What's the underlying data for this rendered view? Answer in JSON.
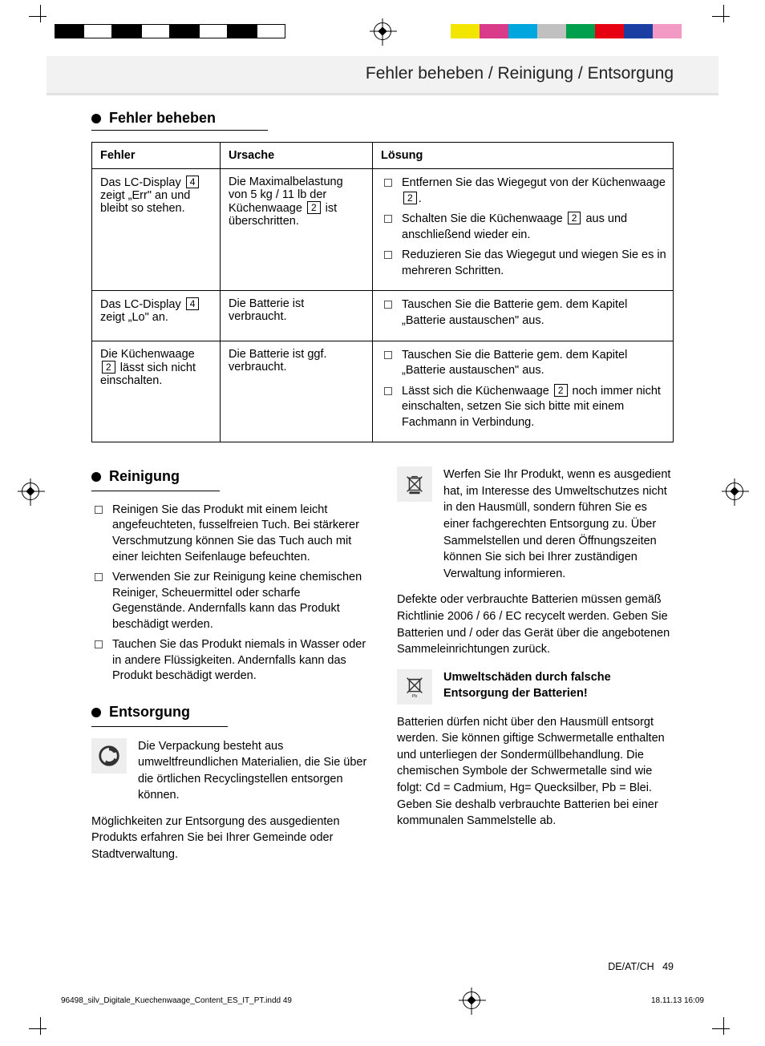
{
  "colorbars": {
    "left": [
      "#000000",
      "#ffffff",
      "#000000",
      "#ffffff",
      "#000000",
      "#ffffff",
      "#000000",
      "#ffffff"
    ],
    "right": [
      "#f2e600",
      "#d93b8a",
      "#00a6dd",
      "#c0c0c0",
      "#009f4d",
      "#e60012",
      "#1a3ea1",
      "#f29ac4"
    ]
  },
  "running_head": "Fehler beheben / Reinigung / Entsorgung",
  "sections": {
    "trouble": "Fehler beheben",
    "clean": "Reinigung",
    "dispose": "Entsorgung"
  },
  "table": {
    "headers": {
      "c1": "Fehler",
      "c2": "Ursache",
      "c3": "Lösung"
    },
    "rows": [
      {
        "fault_pre": "Das LC-Display ",
        "fault_ref": "4",
        "fault_post": " zeigt „Err\" an und bleibt so stehen.",
        "cause_pre": "Die Maximalbelastung von 5 kg / 11 lb der Küchenwaage ",
        "cause_ref": "2",
        "cause_post": " ist überschritten.",
        "sol": [
          {
            "pre": "Entfernen Sie das Wiegegut von der Küchenwaage ",
            "ref": "2",
            "post": "."
          },
          {
            "pre": "Schalten Sie die Küchenwaage ",
            "ref": "2",
            "post": " aus und anschließend wieder ein."
          },
          {
            "pre": "Reduzieren Sie das Wiegegut und wiegen Sie es in mehreren Schritten.",
            "ref": "",
            "post": ""
          }
        ]
      },
      {
        "fault_pre": "Das LC-Display ",
        "fault_ref": "4",
        "fault_post": " zeigt „Lo\" an.",
        "cause_pre": "Die Batterie ist verbraucht.",
        "cause_ref": "",
        "cause_post": "",
        "sol": [
          {
            "pre": "Tauschen Sie die Batterie gem. dem Kapitel „Batterie austauschen\" aus.",
            "ref": "",
            "post": ""
          }
        ]
      },
      {
        "fault_pre": "Die Küchenwaage ",
        "fault_ref": "2",
        "fault_post": " lässt sich nicht einschalten.",
        "cause_pre": "Die Batterie ist ggf. verbraucht.",
        "cause_ref": "",
        "cause_post": "",
        "sol": [
          {
            "pre": "Tauschen Sie die Batterie gem. dem Kapitel „Batterie austauschen\" aus.",
            "ref": "",
            "post": ""
          },
          {
            "pre": "Lässt sich die Küchenwaage ",
            "ref": "2",
            "post": " noch immer nicht einschalten, setzen Sie sich bitte mit einem Fachmann in Verbindung."
          }
        ]
      }
    ]
  },
  "cleaning": [
    "Reinigen Sie das Produkt mit einem leicht angefeuchteten, fusselfreien Tuch. Bei stärkerer Verschmutzung können Sie das Tuch auch mit einer leichten Seifenlauge befeuchten.",
    "Verwenden Sie zur Reinigung keine chemischen Reiniger, Scheuermittel oder scharfe Gegenstände. Andernfalls kann das Produkt beschädigt werden.",
    "Tauchen Sie das Produkt niemals in Wasser oder in andere Flüssigkeiten. Andernfalls kann das Produkt beschädigt werden."
  ],
  "disposal": {
    "p1": "Die Verpackung besteht aus umweltfreundlichen Materialien, die Sie über die örtlichen Recyclingstellen entsorgen können.",
    "p2": "Möglichkeiten zur Entsorgung des ausgedienten Produkts erfahren Sie bei Ihrer Gemeinde oder Stadtverwaltung.",
    "p3": "Werfen Sie Ihr Produkt, wenn es ausgedient hat, im Interesse des Umweltschutzes nicht in den Hausmüll, sondern führen Sie es einer fachgerechten Entsorgung zu. Über Sammelstellen und deren Öffnungszeiten können Sie sich bei Ihrer zuständigen Verwaltung informieren.",
    "p4": "Defekte oder verbrauchte Batterien müssen gemäß Richtlinie 2006 / 66 / EC recycelt werden. Geben Sie Batterien und / oder das Gerät über die angebotenen Sammeleinrichtungen zurück.",
    "warn": "Umweltschäden durch falsche Entsorgung der Batterien!",
    "p5": "Batterien dürfen nicht über den Hausmüll entsorgt werden. Sie können giftige Schwermetalle enthalten und unterliegen der Sondermüllbehandlung. Die chemischen Symbole der Schwermetalle sind wie folgt: Cd = Cadmium, Hg= Quecksilber, Pb = Blei. Geben Sie deshalb verbrauchte Batterien bei einer kommunalen Sammelstelle ab."
  },
  "footer": {
    "lang": "DE/AT/CH",
    "page": "49"
  },
  "jobline": {
    "file": "96498_silv_Digitale_Kuechenwaage_Content_ES_IT_PT.indd   49",
    "date": "18.11.13   16:09"
  }
}
